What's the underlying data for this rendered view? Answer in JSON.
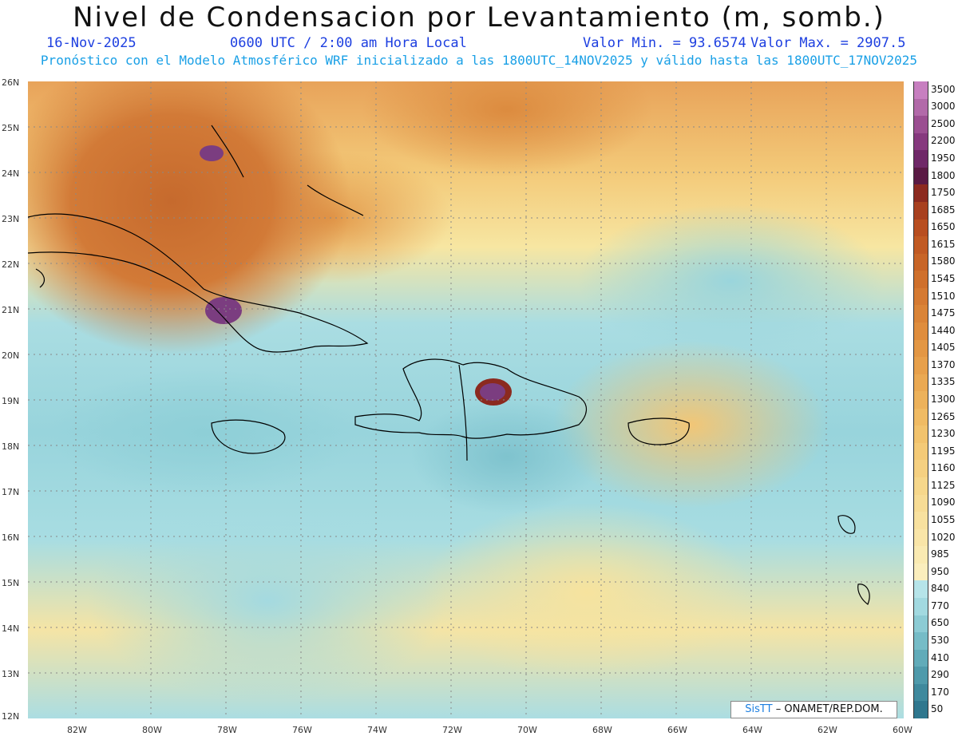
{
  "header": {
    "title": "Nivel de Condensacion por Levantamiento (m, somb.)",
    "date": "16-Nov-2025",
    "time": "0600 UTC / 2:00 am Hora Local",
    "value_min": "Valor Min. = 93.6574",
    "value_max": "Valor Max. = 2907.5",
    "forecast_info": "Pronóstico con el Modelo Atmosférico WRF inicializado a las 1800UTC_14NOV2025 y válido hasta las  1800UTC_17NOV2025"
  },
  "map": {
    "latitude_labels": [
      "26N",
      "25N",
      "24N",
      "23N",
      "22N",
      "21N",
      "20N",
      "19N",
      "18N",
      "17N",
      "16N",
      "15N",
      "14N",
      "13N",
      "12N"
    ],
    "longitude_labels": [
      "82W",
      "80W",
      "78W",
      "76W",
      "74W",
      "72W",
      "70W",
      "68W",
      "66W",
      "64W",
      "62W",
      "60W"
    ]
  },
  "legend": {
    "labels": [
      "3500",
      "3000",
      "2500",
      "2200",
      "1950",
      "1800",
      "1750",
      "1685",
      "1650",
      "1615",
      "1580",
      "1545",
      "1510",
      "1475",
      "1440",
      "1405",
      "1370",
      "1335",
      "1300",
      "1265",
      "1230",
      "1195",
      "1160",
      "1125",
      "1090",
      "1055",
      "1020",
      "985",
      "950",
      "840",
      "770",
      "650",
      "530",
      "410",
      "290",
      "170",
      "50"
    ],
    "colors": [
      "#c77fc0",
      "#b26aa9",
      "#9b4f91",
      "#86397e",
      "#6f2868",
      "#5a1a44",
      "#8c2a1f",
      "#a8401f",
      "#b84e20",
      "#c15a23",
      "#c86527",
      "#cf702c",
      "#d57a32",
      "#da8437",
      "#df8d3d",
      "#e39744",
      "#e7a04b",
      "#eaa953",
      "#edb25b",
      "#f0bb64",
      "#f2c36d",
      "#f4ca77",
      "#f5d081",
      "#f6d78b",
      "#f7dc95",
      "#f8e19f",
      "#f9e5a8",
      "#faeab2",
      "#fbeebd",
      "#b6e4e9",
      "#a2d9e0",
      "#8ccbd4",
      "#76bcc7",
      "#61abb9",
      "#4f9aab",
      "#3f899d",
      "#2f778e"
    ]
  },
  "credit": {
    "brand": "SisTT",
    "text": "– ONAMET/REP.DOM."
  }
}
